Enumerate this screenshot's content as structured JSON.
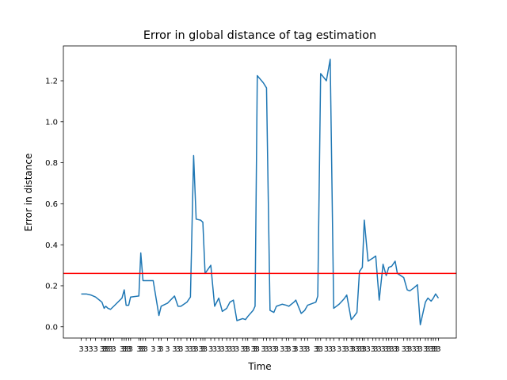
{
  "chart_data": {
    "type": "line",
    "title": "Error in global distance of tag estimation",
    "xlabel": "Time",
    "ylabel": "Error in distance",
    "ylim": [
      -0.055,
      1.37
    ],
    "yticks": [
      0.0,
      0.2,
      0.4,
      0.6,
      0.8,
      1.0,
      1.2
    ],
    "ytick_labels": [
      "0.0",
      "0.2",
      "0.4",
      "0.6",
      "0.8",
      "1.0",
      "1.2"
    ],
    "xtick_labels_note": "dense overlapping timestamp labels, illegible",
    "grid": false,
    "series": [
      {
        "color": "#1f77b4",
        "x": [
          0,
          1.6,
          3.0,
          4.5,
          6.5,
          7.2,
          7.7,
          8.4,
          9.2,
          10.2,
          12.8,
          13.5,
          14.1,
          14.9,
          15.5,
          18.1,
          18.7,
          19.4,
          20.2,
          22.6,
          24.4,
          25.1,
          27.1,
          29.3,
          30.4,
          31.3,
          33.2,
          34.3,
          35.3,
          36.1,
          37.5,
          38.2,
          38.9,
          40.7,
          41.9,
          43.2,
          44.3,
          45.7,
          46.7,
          47.8,
          48.9,
          50.7,
          51.6,
          52.3,
          54.0,
          54.6,
          55.3,
          57.2,
          58.2,
          59.3,
          60.5,
          61.3,
          63.1,
          64.4,
          65.2,
          66.8,
          67.4,
          69.1,
          70.2,
          71.1,
          73.7,
          74.3,
          75.2,
          77.0,
          78.2,
          79.3,
          81.0,
          82.5,
          83.4,
          84.8,
          85.4,
          86.6,
          87.4,
          88.3,
          88.9,
          90.1,
          91.6,
          92.5,
          93.6,
          94.8,
          95.8,
          96.6,
          97.5,
          98.6,
          99.3,
          101.3,
          102.4,
          103.2,
          104.5,
          105.6,
          106.5,
          108.1,
          108.9,
          109.9,
          110.6,
          111.3,
          112.2
        ],
        "y": [
          0.16,
          0.16,
          0.155,
          0.145,
          0.12,
          0.09,
          0.1,
          0.09,
          0.085,
          0.1,
          0.14,
          0.18,
          0.105,
          0.105,
          0.145,
          0.15,
          0.36,
          0.225,
          0.225,
          0.225,
          0.055,
          0.1,
          0.115,
          0.15,
          0.1,
          0.1,
          0.12,
          0.145,
          0.835,
          0.525,
          0.52,
          0.51,
          0.26,
          0.3,
          0.1,
          0.14,
          0.075,
          0.09,
          0.12,
          0.13,
          0.03,
          0.04,
          0.035,
          0.05,
          0.08,
          0.1,
          1.225,
          1.19,
          1.165,
          0.08,
          0.07,
          0.1,
          0.11,
          0.105,
          0.1,
          0.12,
          0.13,
          0.065,
          0.08,
          0.105,
          0.12,
          0.15,
          1.235,
          1.2,
          1.305,
          0.09,
          0.11,
          0.135,
          0.155,
          0.035,
          0.045,
          0.07,
          0.27,
          0.29,
          0.52,
          0.32,
          0.335,
          0.345,
          0.13,
          0.305,
          0.25,
          0.29,
          0.295,
          0.32,
          0.26,
          0.24,
          0.18,
          0.175,
          0.19,
          0.205,
          0.01,
          0.12,
          0.14,
          0.125,
          0.14,
          0.16,
          0.14
        ]
      }
    ],
    "threshold_line": {
      "y": 0.26,
      "color": "#ff0000"
    }
  }
}
